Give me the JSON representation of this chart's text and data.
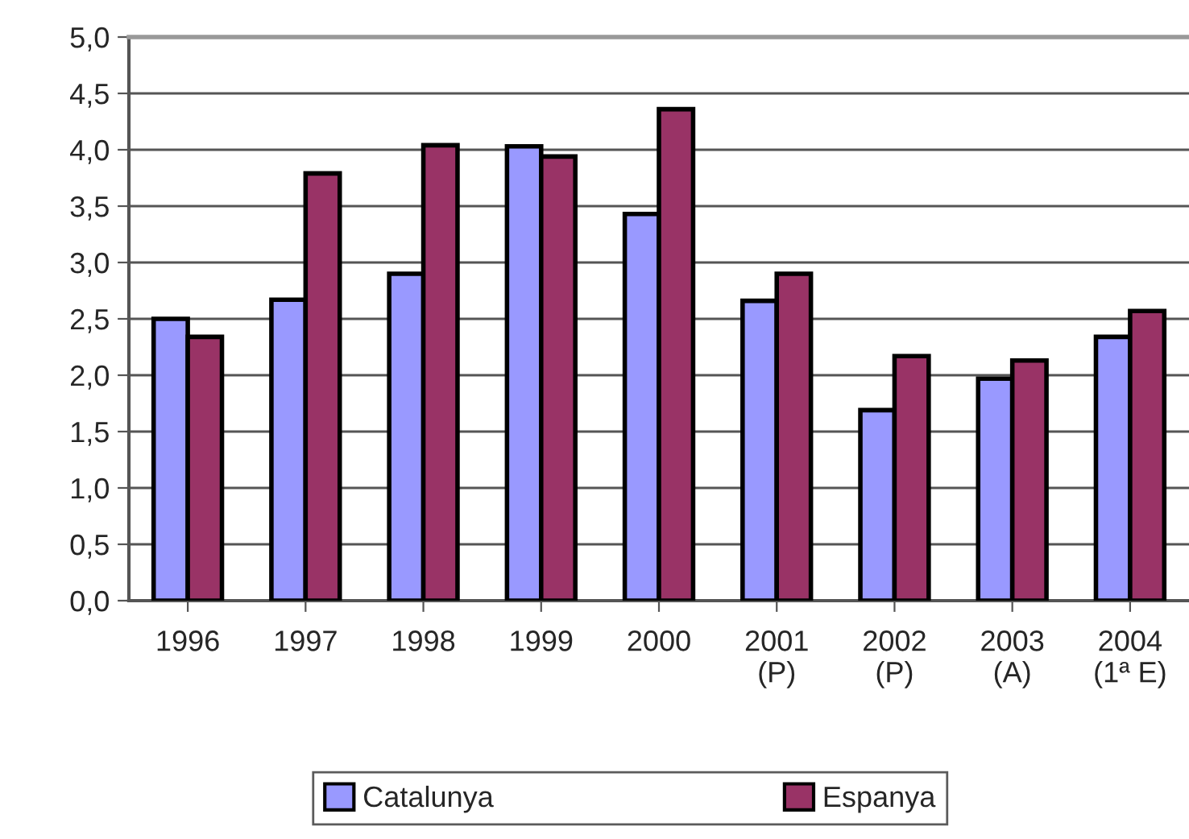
{
  "chart_data": {
    "type": "bar",
    "categories": [
      "1996",
      "1997",
      "1998",
      "1999",
      "2000",
      "2001\n(P)",
      "2002\n(P)",
      "2003\n(A)",
      "2004\n(1ª E)"
    ],
    "series": [
      {
        "name": "Catalunya",
        "color": "#9999ff",
        "values": [
          2.5,
          2.67,
          2.9,
          4.03,
          3.43,
          2.66,
          1.69,
          1.97,
          2.34
        ]
      },
      {
        "name": "Espanya",
        "color": "#993366",
        "values": [
          2.34,
          3.79,
          4.04,
          3.94,
          4.36,
          2.9,
          2.17,
          2.13,
          2.57
        ]
      }
    ],
    "ylim": [
      0,
      5
    ],
    "yticks": [
      {
        "value": 0,
        "label": "0,0"
      },
      {
        "value": 0.5,
        "label": "0,5"
      },
      {
        "value": 1,
        "label": "1,0"
      },
      {
        "value": 1.5,
        "label": "1,5"
      },
      {
        "value": 2,
        "label": "2,0"
      },
      {
        "value": 2.5,
        "label": "2,5"
      },
      {
        "value": 3,
        "label": "3,0"
      },
      {
        "value": 3.5,
        "label": "3,5"
      },
      {
        "value": 4,
        "label": "4,0"
      },
      {
        "value": 4.5,
        "label": "4,5"
      },
      {
        "value": 5,
        "label": "5,0"
      }
    ],
    "grid": "y",
    "legend": "bottom"
  }
}
